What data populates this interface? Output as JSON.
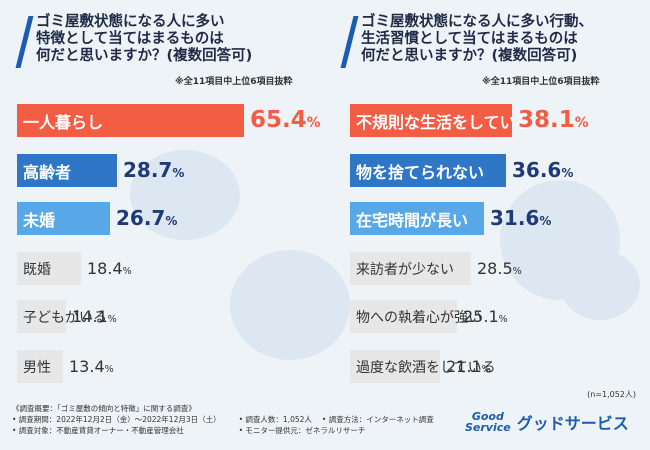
{
  "left": {
    "question": "ゴミ屋敷状態になる人に多い\n特徴として当てはまるものは\n何だと思いますか？(複数回答可)",
    "note": "※全11項目中上位6項目抜粋"
  },
  "right": {
    "question": "ゴミ屋敷状態になる人に多い行動、\n生活習慣として当てはまるものは\n何だと思いますか？(複数回答可)",
    "note": "※全11項目中上位6項目抜粋"
  },
  "chart_data": [
    {
      "type": "bar",
      "orientation": "horizontal",
      "title": "ゴミ屋敷状態になる人に多い特徴として当てはまるものは何だと思いますか？(複数回答可)",
      "categories": [
        "一人暮らし",
        "高齢者",
        "未婚",
        "既婚",
        "子どもがいる",
        "男性"
      ],
      "values": [
        65.4,
        28.7,
        26.7,
        18.4,
        14.1,
        13.4
      ],
      "value_labels": [
        {
          "num": "65.4",
          "pct": "%"
        },
        {
          "num": "28.7",
          "pct": "%"
        },
        {
          "num": "26.7",
          "pct": "%"
        },
        {
          "num": "18.4",
          "pct": "%"
        },
        {
          "num": "14.1",
          "pct": "%"
        },
        {
          "num": "13.4",
          "pct": "%"
        }
      ],
      "unit": "%",
      "colors": [
        "#f25d43",
        "#2f76c6",
        "#58a7e6",
        "#e7e7e7",
        "#e7e7e7",
        "#e7e7e7"
      ]
    },
    {
      "type": "bar",
      "orientation": "horizontal",
      "title": "ゴミ屋敷状態になる人に多い行動、生活習慣として当てはまるものは何だと思いますか？(複数回答可)",
      "categories": [
        "不規則な生活をしている",
        "物を捨てられない",
        "在宅時間が長い",
        "来訪者が少ない",
        "物への執着心が強い",
        "過度な飲酒をしている"
      ],
      "values": [
        38.1,
        36.6,
        31.6,
        28.5,
        25.1,
        21.1
      ],
      "value_labels": [
        {
          "num": "38.1",
          "pct": "%"
        },
        {
          "num": "36.6",
          "pct": "%"
        },
        {
          "num": "31.6",
          "pct": "%"
        },
        {
          "num": "28.5",
          "pct": "%"
        },
        {
          "num": "25.1",
          "pct": "%"
        },
        {
          "num": "21.1",
          "pct": "%"
        }
      ],
      "unit": "%",
      "colors": [
        "#f25d43",
        "#2f76c6",
        "#58a7e6",
        "#e7e7e7",
        "#e7e7e7",
        "#e7e7e7"
      ]
    }
  ],
  "sample_note": "(n=1,052人)",
  "footer": {
    "title": "《調査概要：「ゴミ屋敷の傾向と特徴」に関する調査》",
    "period": "• 調査期間：2022年12月2日（金）～2022年12月3日（土）",
    "target": "• 調査対象：不動産賃貸オーナー・不動産管理会社",
    "people": "• 調査人数：1,052人",
    "method": "• 調査方法：インターネット調査",
    "provider": "• モニター提供元：ゼネラルリサーチ"
  },
  "logo": {
    "mark_line1": "Good",
    "mark_line2": "Service",
    "name": "グッドサービス"
  }
}
